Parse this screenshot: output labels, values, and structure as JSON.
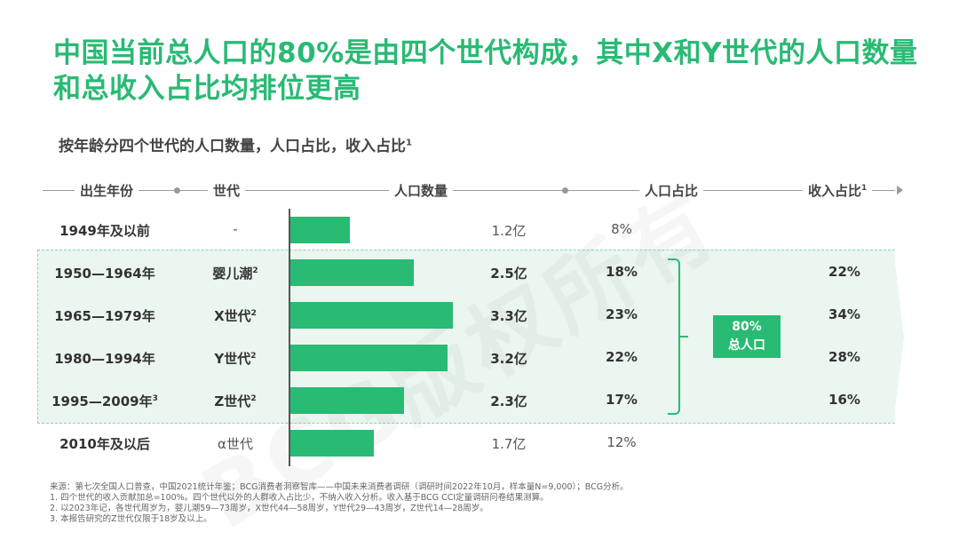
{
  "title": "中国当前总人口的80%是由四个世代构成，其中X和Y世代的人口数量和总收入占比均排位更高",
  "subtitle": "按年龄分四个世代的人口数量，人口占比，收入占比",
  "subtitle_footnote": "1",
  "headers": {
    "birth_year": "出生年份",
    "generation": "世代",
    "population": "人口数量",
    "pop_share": "人口占比",
    "income_share": "收入占比",
    "income_footnote": "1"
  },
  "chart_data": {
    "type": "bar",
    "orientation": "horizontal",
    "title": "按年龄分四个世代的人口数量，人口占比，收入占比",
    "categories": [
      "1949年及以前",
      "1950—1964年",
      "1965—1979年",
      "1980—1994年",
      "1995—2009年",
      "2010年及以后"
    ],
    "series": [
      {
        "values": [
          1.2,
          2.5,
          3.3,
          3.2,
          2.3,
          1.7
        ]
      }
    ],
    "xlim": [
      0,
      3.5
    ],
    "rows": [
      {
        "birth": "1949年及以前",
        "birth_note": "",
        "generation": "-",
        "gen_note": "",
        "pop_label": "1.2亿",
        "pop": 1.2,
        "share": "8%",
        "income": "",
        "highlight": false
      },
      {
        "birth": "1950—1964年",
        "birth_note": "",
        "generation": "婴儿潮",
        "gen_note": "2",
        "pop_label": "2.5亿",
        "pop": 2.5,
        "share": "18%",
        "income": "22%",
        "highlight": true
      },
      {
        "birth": "1965—1979年",
        "birth_note": "",
        "generation": "X世代",
        "gen_note": "2",
        "pop_label": "3.3亿",
        "pop": 3.3,
        "share": "23%",
        "income": "34%",
        "highlight": true
      },
      {
        "birth": "1980—1994年",
        "birth_note": "",
        "generation": "Y世代",
        "gen_note": "2",
        "pop_label": "3.2亿",
        "pop": 3.2,
        "share": "22%",
        "income": "28%",
        "highlight": true
      },
      {
        "birth": "1995—2009年",
        "birth_note": "3",
        "generation": "Z世代",
        "gen_note": "2",
        "pop_label": "2.3亿",
        "pop": 2.3,
        "share": "17%",
        "income": "16%",
        "highlight": true
      },
      {
        "birth": "2010年及以后",
        "birth_note": "",
        "generation": "α世代",
        "gen_note": "",
        "pop_label": "1.7亿",
        "pop": 1.7,
        "share": "12%",
        "income": "",
        "highlight": false
      }
    ]
  },
  "badge": {
    "line1": "80%",
    "line2": "总人口"
  },
  "watermark": "BCG版权所有",
  "colors": {
    "accent": "#29ba74",
    "highlight_bg": "#eaf6ef"
  },
  "notes": [
    "来源：第七次全国人口普查，中国2021统计年鉴；BCG消费者洞察智库——中国未来消费者调研（调研时间2022年10月，样本量N=9,000）；BCG分析。",
    "1. 四个世代的收入贡献加总=100%。四个世代以外的人群收入占比少，不纳入收入分析。收入基于BCG CCI定量调研问卷结果测算。",
    "2. 以2023年记，各世代周岁为，婴儿潮59—73周岁，X世代44—58周岁，Y世代29—43周岁，Z世代14—28周岁。",
    "3. 本报告研究的Z世代仅限于18岁及以上。"
  ]
}
